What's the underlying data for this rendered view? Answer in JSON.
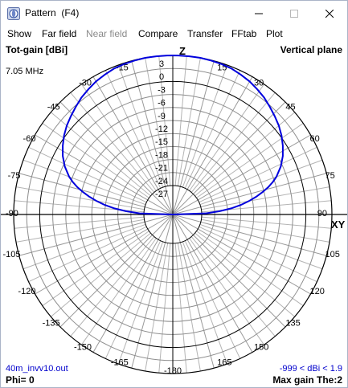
{
  "window": {
    "title": "Pattern  (F4)",
    "icon": "pattern-app-icon",
    "controls": [
      "minimize-icon",
      "maximize-icon",
      "close-icon"
    ]
  },
  "menu": {
    "items": [
      {
        "label": "Show",
        "enabled": true
      },
      {
        "label": "Far field",
        "enabled": true
      },
      {
        "label": "Near field",
        "enabled": false
      },
      {
        "label": "Compare",
        "enabled": true
      },
      {
        "label": "Transfer",
        "enabled": true
      },
      {
        "label": "FFtab",
        "enabled": true
      },
      {
        "label": "Plot",
        "enabled": true
      }
    ]
  },
  "plot": {
    "gain_type": "Tot-gain [dBi]",
    "plane": "Vertical plane",
    "frequency": "7.05 MHz",
    "file": "40m_invv10.out",
    "phi": "Phi= 0",
    "range": "-999 < dBi < 1.9",
    "max_gain": "Max gain The:2",
    "zenith_label": "Z",
    "horizon_label": "XY",
    "trace_color": "#0000dd",
    "grid_color": "#b4b4b4",
    "angle_labels": [
      {
        "text": "-15",
        "deg": -15
      },
      {
        "text": "15",
        "deg": 15
      },
      {
        "text": "-30",
        "deg": -30
      },
      {
        "text": "30",
        "deg": 30
      },
      {
        "text": "-45",
        "deg": -45
      },
      {
        "text": "45",
        "deg": 45
      },
      {
        "text": "-60",
        "deg": -60
      },
      {
        "text": "60",
        "deg": 60
      },
      {
        "text": "-75",
        "deg": -75
      },
      {
        "text": "75",
        "deg": 75
      },
      {
        "text": "-90",
        "deg": -90
      },
      {
        "text": "90",
        "deg": 90
      },
      {
        "text": "-105",
        "deg": -105
      },
      {
        "text": "105",
        "deg": 105
      },
      {
        "text": "-120",
        "deg": -120
      },
      {
        "text": "120",
        "deg": 120
      },
      {
        "text": "-135",
        "deg": -135
      },
      {
        "text": "135",
        "deg": 135
      },
      {
        "text": "-150",
        "deg": -150
      },
      {
        "text": "150",
        "deg": 150
      },
      {
        "text": "-165",
        "deg": -165
      },
      {
        "text": "165",
        "deg": 165
      },
      {
        "text": "-180",
        "deg": 180
      }
    ],
    "ring_labels": [
      "3",
      "0",
      "-3",
      "-6",
      "-9",
      "-12",
      "-15",
      "-18",
      "-21",
      "-24",
      "-27"
    ],
    "pattern": {
      "max_dbi": 1.9,
      "theta_deg": [
        -90,
        -88,
        -86,
        -84,
        -82,
        -80,
        -78,
        -76,
        -74,
        -72,
        -70,
        -66,
        -62,
        -58,
        -54,
        -50,
        -46,
        -42,
        -38,
        -34,
        -30,
        -26,
        -22,
        -18,
        -14,
        -10,
        -6,
        -2,
        0,
        2,
        6,
        10,
        14,
        18,
        22,
        26,
        30,
        34,
        38,
        42,
        46,
        50,
        54,
        58,
        62,
        66,
        70,
        72,
        74,
        76,
        78,
        80,
        82,
        84,
        86,
        88,
        90
      ],
      "gain_dbi": [
        -999,
        -25,
        -19,
        -15.2,
        -12.5,
        -10.5,
        -8.8,
        -7.4,
        -6.2,
        -5.2,
        -4.4,
        -3.2,
        -2.3,
        -1.6,
        -1,
        -0.5,
        -0.1,
        0.3,
        0.7,
        1,
        1.3,
        1.5,
        1.7,
        1.8,
        1.85,
        1.9,
        1.9,
        1.9,
        1.9,
        1.9,
        1.9,
        1.9,
        1.85,
        1.8,
        1.7,
        1.5,
        1.3,
        1,
        0.7,
        0.3,
        -0.1,
        -0.5,
        -1,
        -1.6,
        -2.3,
        -3.2,
        -4.4,
        -5.2,
        -6.2,
        -7.4,
        -8.8,
        -10.5,
        -12.5,
        -15.2,
        -19,
        -25,
        -999
      ]
    }
  }
}
